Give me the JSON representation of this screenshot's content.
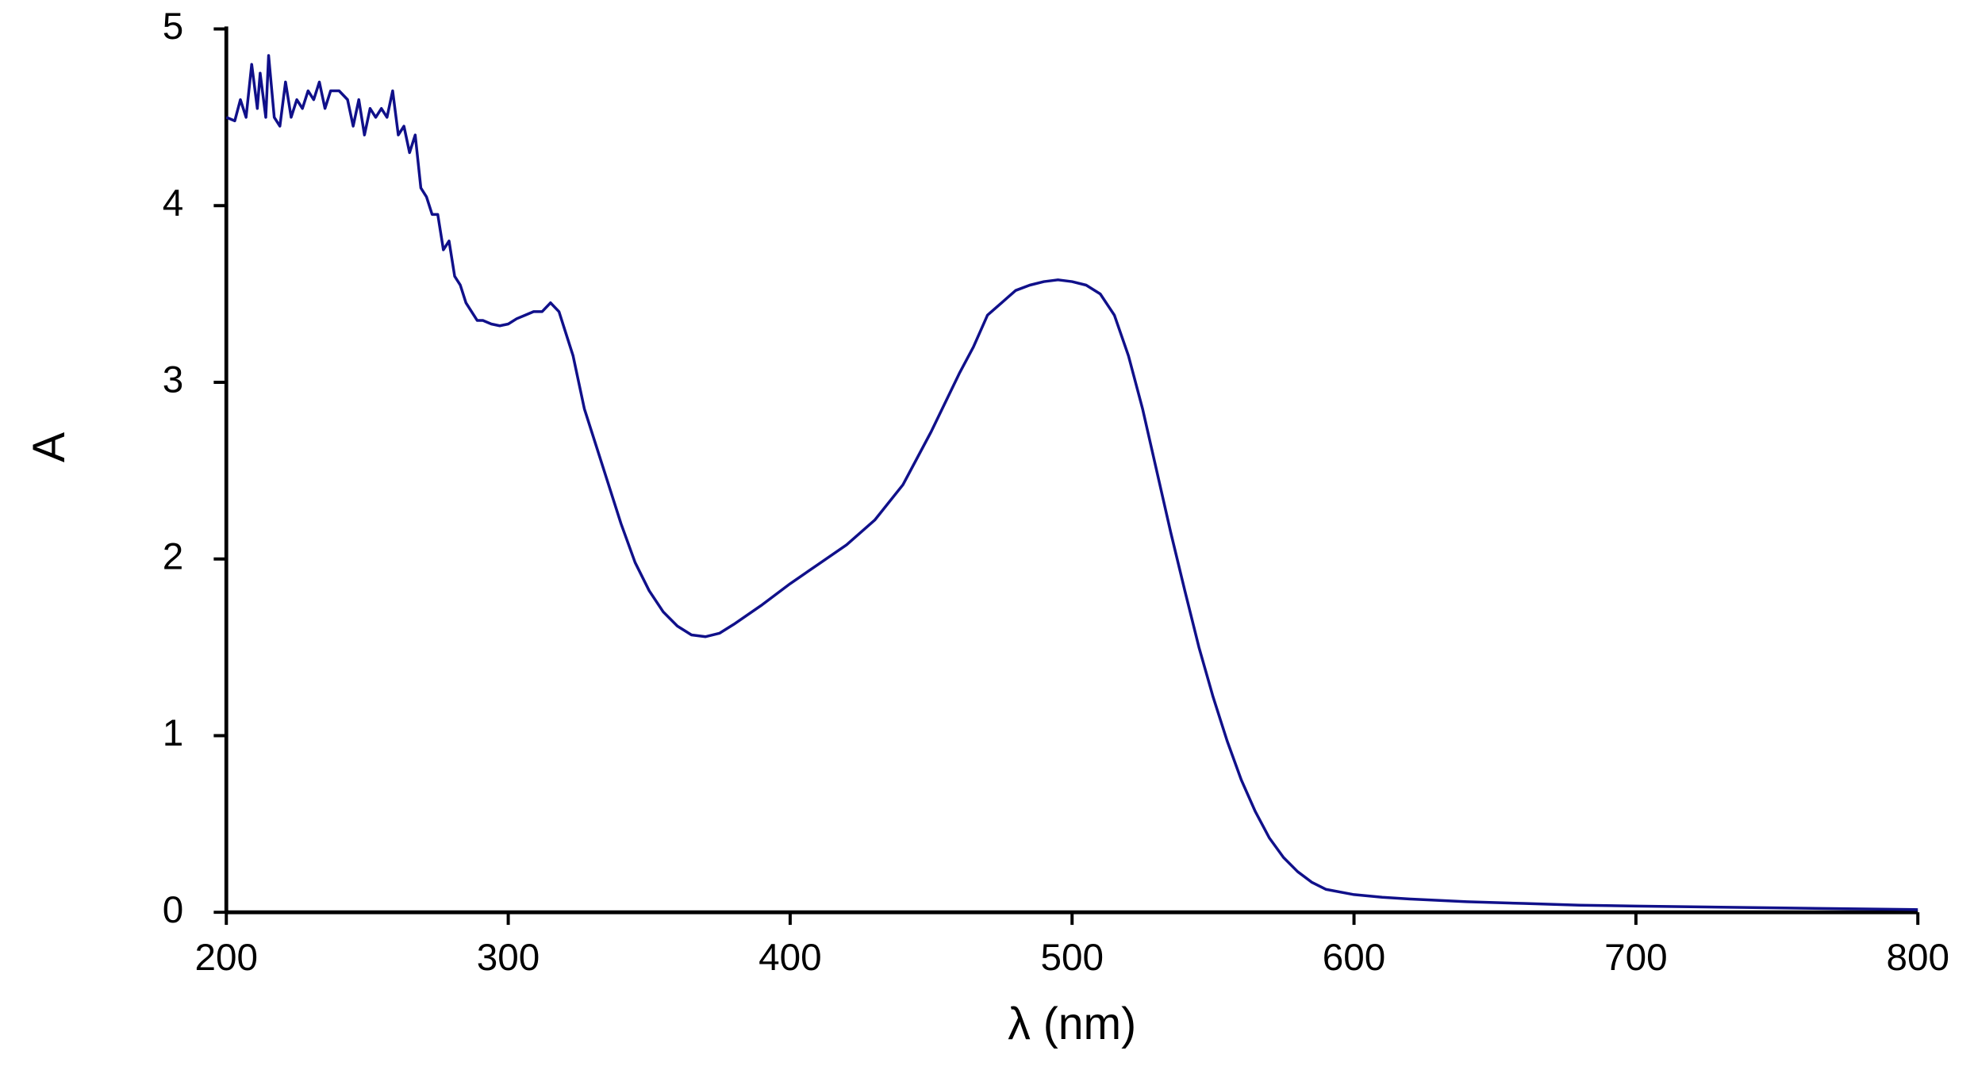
{
  "chart_data": {
    "type": "line",
    "xlabel": "λ (nm)",
    "ylabel": "A",
    "x": [
      200,
      203,
      205,
      207,
      209,
      211,
      212,
      214,
      215,
      217,
      219,
      221,
      223,
      225,
      227,
      229,
      231,
      233,
      235,
      237,
      240,
      243,
      245,
      247,
      249,
      251,
      253,
      255,
      257,
      259,
      261,
      263,
      265,
      267,
      269,
      271,
      273,
      275,
      277,
      279,
      281,
      283,
      285,
      287,
      289,
      291,
      294,
      297,
      300,
      303,
      306,
      309,
      312,
      315,
      318,
      320,
      323,
      325,
      327,
      330,
      335,
      340,
      345,
      350,
      355,
      360,
      365,
      370,
      375,
      380,
      390,
      400,
      410,
      420,
      430,
      440,
      450,
      460,
      465,
      470,
      475,
      480,
      485,
      490,
      495,
      500,
      505,
      510,
      515,
      520,
      525,
      530,
      535,
      540,
      545,
      550,
      555,
      560,
      565,
      570,
      575,
      580,
      585,
      590,
      600,
      610,
      620,
      640,
      660,
      680,
      700,
      750,
      800
    ],
    "series": [
      {
        "color": "#10108a",
        "values": [
          4.5,
          4.48,
          4.6,
          4.5,
          4.8,
          4.55,
          4.75,
          4.5,
          4.85,
          4.5,
          4.45,
          4.7,
          4.5,
          4.6,
          4.55,
          4.65,
          4.6,
          4.7,
          4.55,
          4.65,
          4.65,
          4.6,
          4.45,
          4.6,
          4.4,
          4.55,
          4.5,
          4.55,
          4.5,
          4.65,
          4.4,
          4.45,
          4.3,
          4.4,
          4.1,
          4.05,
          3.95,
          3.95,
          3.75,
          3.8,
          3.6,
          3.55,
          3.45,
          3.4,
          3.35,
          3.35,
          3.33,
          3.32,
          3.33,
          3.36,
          3.38,
          3.4,
          3.4,
          3.45,
          3.4,
          3.3,
          3.15,
          3.0,
          2.85,
          2.7,
          2.45,
          2.2,
          1.98,
          1.82,
          1.7,
          1.62,
          1.57,
          1.56,
          1.58,
          1.63,
          1.74,
          1.86,
          1.97,
          2.08,
          2.22,
          2.42,
          2.72,
          3.05,
          3.2,
          3.38,
          3.45,
          3.52,
          3.55,
          3.57,
          3.58,
          3.57,
          3.55,
          3.5,
          3.38,
          3.15,
          2.85,
          2.5,
          2.15,
          1.82,
          1.5,
          1.22,
          0.97,
          0.75,
          0.57,
          0.42,
          0.31,
          0.23,
          0.17,
          0.13,
          0.1,
          0.085,
          0.075,
          0.06,
          0.05,
          0.04,
          0.035,
          0.025,
          0.015
        ]
      }
    ],
    "xlim": [
      200,
      800
    ],
    "xticks": [
      200,
      300,
      400,
      500,
      600,
      700,
      800
    ],
    "ylim": [
      0,
      5
    ],
    "yticks": [
      0,
      1,
      2,
      3,
      4,
      5
    ]
  }
}
